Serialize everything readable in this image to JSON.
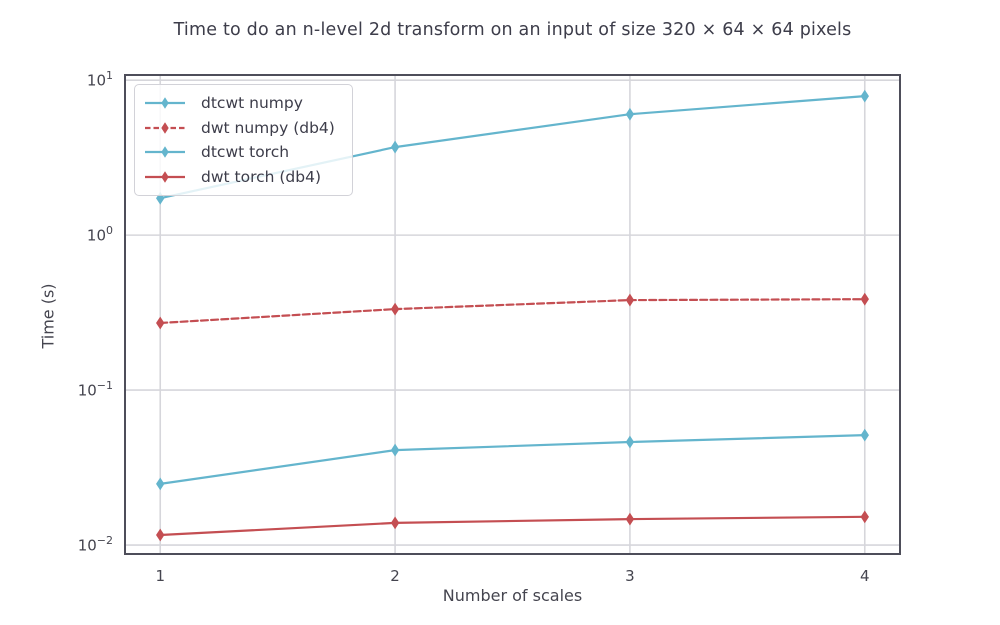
{
  "figure": {
    "background": "#ffffff"
  },
  "chart_data": {
    "type": "line",
    "title": "Time to do an n-level 2d transform on an input of size 320 × 64 × 64 pixels",
    "xlabel": "Number of scales",
    "ylabel": "Time (s)",
    "yscale": "log",
    "grid": true,
    "legend_position": "upper-left",
    "x": [
      1,
      2,
      3,
      4
    ],
    "xlim": [
      0.85,
      4.15
    ],
    "ylim": [
      0.00875,
      10.8
    ],
    "xticks": [
      {
        "value": 1,
        "label": "1"
      },
      {
        "value": 2,
        "label": "2"
      },
      {
        "value": 3,
        "label": "3"
      },
      {
        "value": 4,
        "label": "4"
      }
    ],
    "yticks": [
      {
        "value": 10,
        "base": "10",
        "exp": "1"
      },
      {
        "value": 1,
        "base": "10",
        "exp": "0"
      },
      {
        "value": 0.1,
        "base": "10",
        "exp": "−1"
      },
      {
        "value": 0.01,
        "base": "10",
        "exp": "−2"
      }
    ],
    "series": [
      {
        "name": "dtcwt numpy",
        "color": "#64b5cd",
        "dash": "solid",
        "marker": "diamond",
        "values": [
          1.73,
          3.7,
          6.03,
          7.89
        ]
      },
      {
        "name": "dwt numpy (db4)",
        "color": "#c44e52",
        "dash": "dashed",
        "marker": "diamond",
        "values": [
          0.271,
          0.333,
          0.381,
          0.386
        ]
      },
      {
        "name": "dtcwt torch",
        "color": "#64b5cd",
        "dash": "solid",
        "marker": "diamond",
        "values": [
          0.0248,
          0.041,
          0.0462,
          0.0512
        ]
      },
      {
        "name": "dwt torch (db4)",
        "color": "#c44e52",
        "dash": "solid",
        "marker": "diamond",
        "values": [
          0.0116,
          0.0139,
          0.0147,
          0.0152
        ]
      }
    ]
  },
  "colors": {
    "series_blue": "#64b5cd",
    "series_red": "#c44e52",
    "grid": "#d6d6db",
    "spine": "#4e4e5a",
    "tick_text": "#45454f",
    "label_text": "#3d3d4a",
    "legend_border": "#d2d2d8"
  }
}
